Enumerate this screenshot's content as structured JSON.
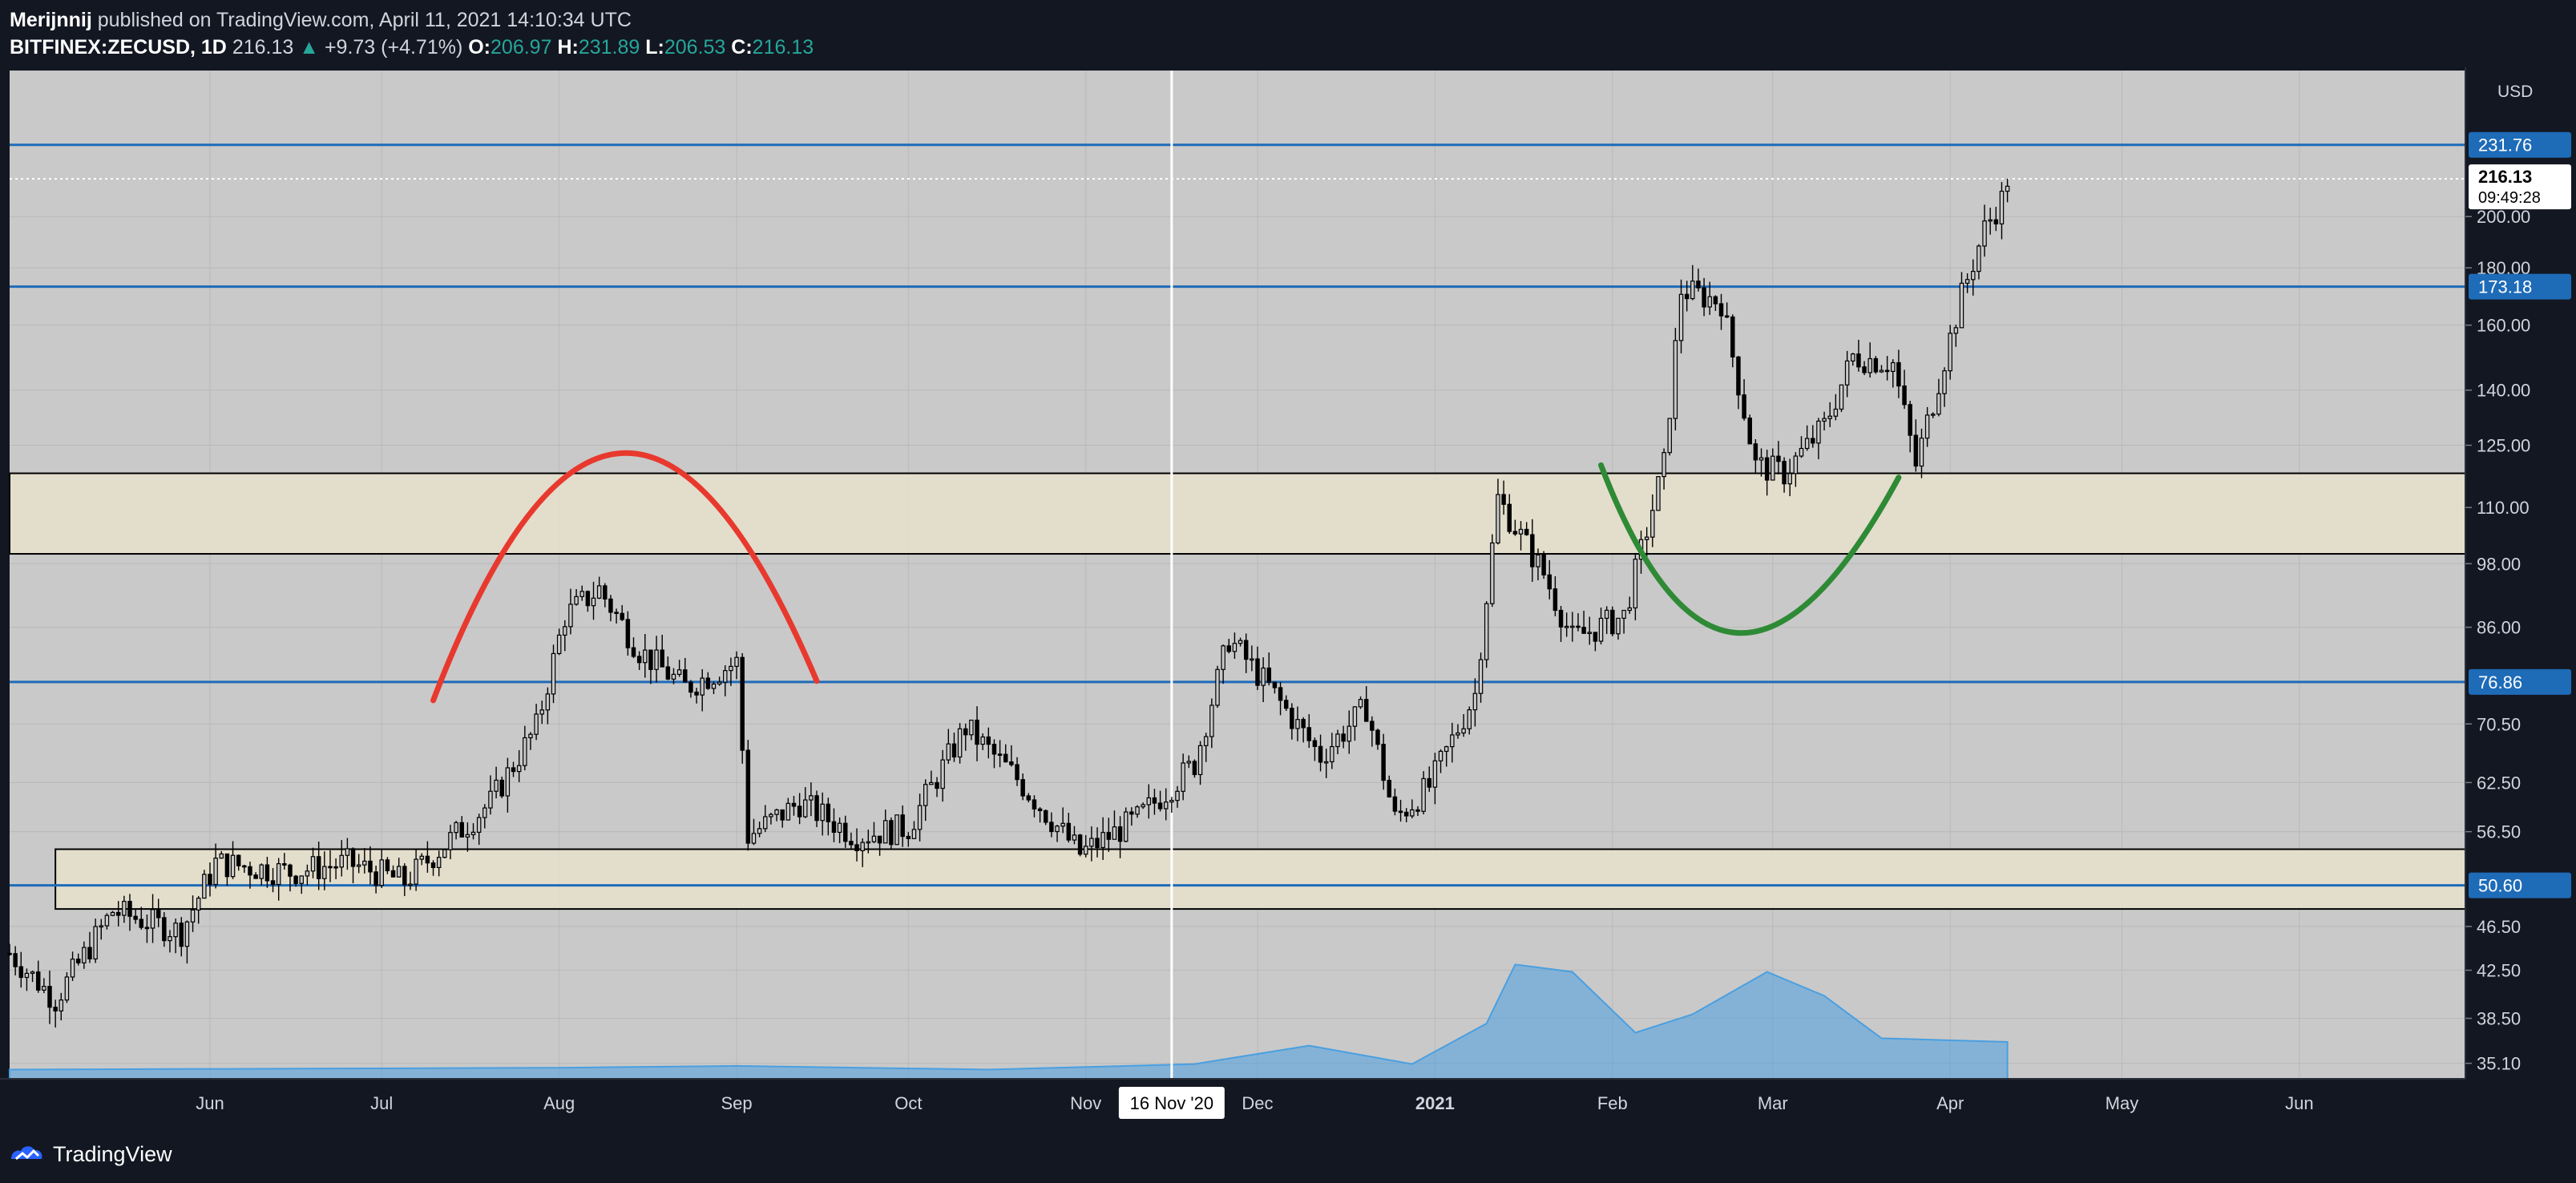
{
  "header": {
    "author": "Merijnnij",
    "published_text": "published on TradingView.com, April 11, 2021 14:10:34 UTC",
    "symbol": "BITFINEX:ZECUSD, 1D",
    "last": "216.13",
    "change_arrow": "▲",
    "change": "+9.73 (+4.71%)",
    "o_label": "O:",
    "o_value": "206.97",
    "h_label": "H:",
    "h_value": "231.89",
    "l_label": "L:",
    "l_value": "206.53",
    "c_label": "C:",
    "c_value": "216.13"
  },
  "footer": {
    "brand": "TradingView",
    "logo_icon": "tradingview-logo-icon"
  },
  "chart_data": {
    "type": "candlestick",
    "currency": "USD",
    "scale": "log",
    "ylim": [
      34,
      270
    ],
    "x_range": [
      "2020-04-27",
      "2021-06-30"
    ],
    "y_ticks": [
      35.1,
      38.5,
      42.5,
      46.5,
      50.6,
      56.5,
      62.5,
      70.5,
      76.86,
      86.0,
      98.0,
      110.0,
      125.0,
      140.0,
      160.0,
      173.18,
      180.0,
      200.0,
      231.76
    ],
    "x_ticks": [
      {
        "label": "Jun",
        "date": "2020-06-01"
      },
      {
        "label": "Jul",
        "date": "2020-07-01"
      },
      {
        "label": "Aug",
        "date": "2020-08-01"
      },
      {
        "label": "Sep",
        "date": "2020-09-01"
      },
      {
        "label": "Oct",
        "date": "2020-10-01"
      },
      {
        "label": "Nov",
        "date": "2020-11-01"
      },
      {
        "label": "Dec",
        "date": "2020-12-01"
      },
      {
        "label": "2021",
        "date": "2021-01-01",
        "bold": true
      },
      {
        "label": "Feb",
        "date": "2021-02-01"
      },
      {
        "label": "Mar",
        "date": "2021-03-01"
      },
      {
        "label": "Apr",
        "date": "2021-04-01"
      },
      {
        "label": "May",
        "date": "2021-05-01"
      },
      {
        "label": "Jun",
        "date": "2021-06-01"
      }
    ],
    "price_keypoints": [
      [
        "2020-04-27",
        44
      ],
      [
        "2020-05-05",
        40
      ],
      [
        "2020-05-15",
        48
      ],
      [
        "2020-05-27",
        46
      ],
      [
        "2020-06-02",
        53
      ],
      [
        "2020-06-15",
        52
      ],
      [
        "2020-06-25",
        53
      ],
      [
        "2020-07-05",
        51
      ],
      [
        "2020-07-12",
        55
      ],
      [
        "2020-07-20",
        60
      ],
      [
        "2020-07-28",
        70
      ],
      [
        "2020-08-02",
        88
      ],
      [
        "2020-08-08",
        93
      ],
      [
        "2020-08-15",
        82
      ],
      [
        "2020-08-23",
        76
      ],
      [
        "2020-09-01",
        80
      ],
      [
        "2020-09-03",
        56
      ],
      [
        "2020-09-12",
        60
      ],
      [
        "2020-09-22",
        56
      ],
      [
        "2020-10-01",
        57
      ],
      [
        "2020-10-11",
        70
      ],
      [
        "2020-10-20",
        63
      ],
      [
        "2020-10-31",
        54
      ],
      [
        "2020-11-10",
        58
      ],
      [
        "2020-11-20",
        65
      ],
      [
        "2020-11-26",
        84
      ],
      [
        "2020-12-03",
        76
      ],
      [
        "2020-12-12",
        66
      ],
      [
        "2020-12-20",
        73
      ],
      [
        "2020-12-25",
        58
      ],
      [
        "2020-12-31",
        62
      ],
      [
        "2021-01-08",
        75
      ],
      [
        "2021-01-12",
        112
      ],
      [
        "2021-01-20",
        96
      ],
      [
        "2021-01-25",
        84
      ],
      [
        "2021-02-03",
        88
      ],
      [
        "2021-02-10",
        120
      ],
      [
        "2021-02-13",
        172
      ],
      [
        "2021-02-20",
        168
      ],
      [
        "2021-02-26",
        120
      ],
      [
        "2021-03-03",
        118
      ],
      [
        "2021-03-10",
        130
      ],
      [
        "2021-03-15",
        150
      ],
      [
        "2021-03-22",
        148
      ],
      [
        "2021-03-26",
        120
      ],
      [
        "2021-04-03",
        170
      ],
      [
        "2021-04-07",
        195
      ],
      [
        "2021-04-10",
        206.97
      ],
      [
        "2021-04-11",
        216.13
      ]
    ],
    "horizontal_lines": [
      {
        "value": 231.76,
        "label": "231.76",
        "color": "#1e6bb8"
      },
      {
        "value": 173.18,
        "label": "173.18",
        "color": "#1e6bb8"
      },
      {
        "value": 76.86,
        "label": "76.86",
        "color": "#1e6bb8"
      },
      {
        "value": 50.6,
        "label": "50.60",
        "color": "#1e6bb8"
      }
    ],
    "zones": [
      {
        "low": 100,
        "high": 118,
        "from": "2020-04-27",
        "to": "2021-06-30",
        "fill": "#e8e0cc"
      },
      {
        "low": 48.2,
        "high": 54.5,
        "from": "2020-05-05",
        "to": "2021-06-30",
        "fill": "#e8e0cc"
      }
    ],
    "vertical_line": {
      "date": "2020-11-16",
      "label": "16 Nov '20"
    },
    "current_price": {
      "value": 216.13,
      "label": "216.13",
      "countdown": "09:49:28"
    },
    "arcs": [
      {
        "color": "#e8392e",
        "points": [
          [
            "2020-07-10",
            74
          ],
          [
            "2020-08-12",
            123
          ],
          [
            "2020-09-15",
            77
          ]
        ]
      },
      {
        "color": "#2e8a35",
        "points": [
          [
            "2021-01-30",
            120
          ],
          [
            "2021-02-23",
            85
          ],
          [
            "2021-03-23",
            117
          ]
        ]
      }
    ],
    "volume_area": [
      [
        "2020-04-27",
        0.05
      ],
      [
        "2020-08-01",
        0.06
      ],
      [
        "2020-09-01",
        0.07
      ],
      [
        "2020-10-15",
        0.05
      ],
      [
        "2020-11-20",
        0.08
      ],
      [
        "2020-12-10",
        0.18
      ],
      [
        "2020-12-28",
        0.08
      ],
      [
        "2021-01-10",
        0.3
      ],
      [
        "2021-01-15",
        0.62
      ],
      [
        "2021-01-25",
        0.58
      ],
      [
        "2021-02-05",
        0.25
      ],
      [
        "2021-02-15",
        0.35
      ],
      [
        "2021-02-28",
        0.58
      ],
      [
        "2021-03-10",
        0.45
      ],
      [
        "2021-03-20",
        0.22
      ],
      [
        "2021-04-11",
        0.2
      ]
    ],
    "colors": {
      "background": "#c9c9c9",
      "candle": "#000000",
      "grid": "#b9b9b9",
      "level_line": "#1e6bb8",
      "volume": "#4a9fe0",
      "axis_bg": "#131722",
      "axis_text": "#d1d4dc"
    }
  }
}
